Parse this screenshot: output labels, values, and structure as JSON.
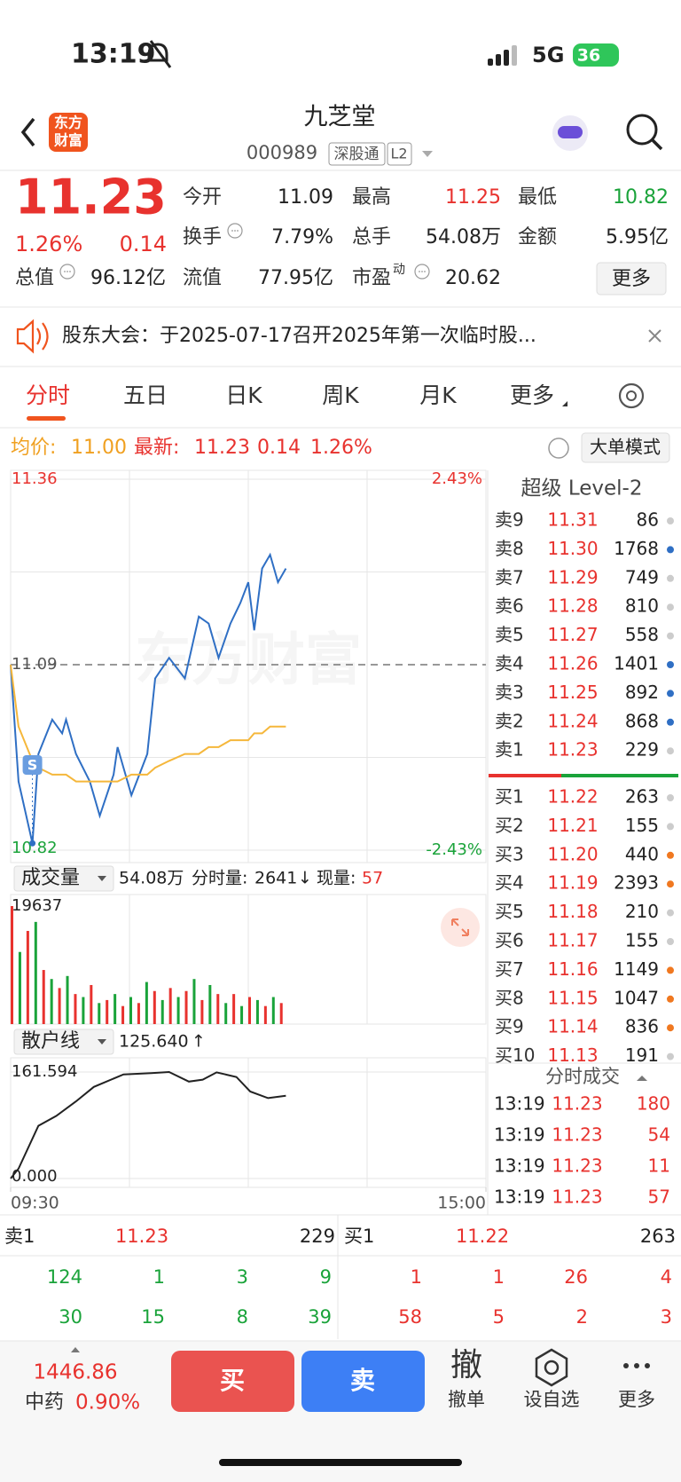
{
  "status_bar": {
    "time": "13:19",
    "network": "5G",
    "battery": "36"
  },
  "header": {
    "logo": [
      "东方",
      "财富"
    ],
    "title": "九芝堂",
    "code": "000989",
    "tags": [
      "深股通",
      "L2"
    ]
  },
  "quote": {
    "price": "11.23",
    "change_pct": "1.26%",
    "change": "0.14",
    "rows": [
      [
        {
          "label": "今开",
          "value": "11.09"
        },
        {
          "label": "最高",
          "value": "11.25"
        },
        {
          "label": "最低",
          "value": "10.82"
        }
      ],
      [
        {
          "label": "换手",
          "value": "7.79%"
        },
        {
          "label": "总手",
          "value": "54.08万"
        },
        {
          "label": "金额",
          "value": "5.95亿"
        }
      ],
      [
        {
          "label": "总值",
          "value": "96.12亿"
        },
        {
          "label": "流值",
          "value": "77.95亿"
        },
        {
          "label": "市盈",
          "sup": "动",
          "value": "20.62"
        }
      ]
    ],
    "more": "更多"
  },
  "notice": "股东大会：于2025-07-17召开2025年第一次临时股...",
  "tabs": [
    "分时",
    "五日",
    "日K",
    "周K",
    "月K",
    "更多"
  ],
  "info_bar": {
    "avg_label": "均价:",
    "avg": "11.00",
    "latest_label": "最新:",
    "latest": "11.23",
    "change": "0.14",
    "change_pct": "1.26%",
    "mode": "大单模式"
  },
  "chart_data": [
    {
      "type": "line",
      "ylim": [
        10.82,
        11.36
      ],
      "yticks": [
        11.36,
        11.09,
        10.82
      ],
      "y2lim": [
        -2.43,
        2.43
      ],
      "y2ticks": [
        {
          "value": 2.43,
          "label": "2.43%"
        },
        {
          "value": -2.43,
          "label": "-2.43%"
        }
      ],
      "xlim": [
        0,
        240
      ],
      "xticks": [
        {
          "value": 0,
          "label": "09:30"
        },
        {
          "value": 240,
          "label": "15:00"
        }
      ],
      "watermark": "东方财富",
      "marker": "S",
      "x": [
        0,
        4,
        11,
        14,
        21,
        26,
        28,
        33,
        40,
        45,
        52,
        54,
        61,
        69,
        73,
        80,
        88,
        95,
        100,
        105,
        111,
        116,
        120,
        123,
        127,
        131,
        135,
        139
      ],
      "series": [
        {
          "color": "#2f6fc4",
          "values": [
            11.09,
            10.92,
            10.83,
            10.96,
            11.01,
            10.99,
            11.01,
            10.96,
            10.92,
            10.87,
            10.93,
            10.97,
            10.9,
            10.96,
            11.07,
            11.1,
            11.07,
            11.16,
            11.15,
            11.1,
            11.15,
            11.18,
            11.21,
            11.14,
            11.23,
            11.25,
            11.21,
            11.23
          ]
        },
        {
          "color": "#f5b73b",
          "values": [
            11.09,
            11.0,
            10.95,
            10.94,
            10.93,
            10.93,
            10.93,
            10.92,
            10.92,
            10.92,
            10.92,
            10.92,
            10.93,
            10.93,
            10.94,
            10.95,
            10.96,
            10.96,
            10.97,
            10.97,
            10.98,
            10.98,
            10.98,
            10.99,
            10.99,
            11.0,
            11.0,
            11.0
          ]
        }
      ]
    },
    {
      "type": "bar",
      "title": "成交量",
      "total": "54.08万",
      "minute_label": "分时量:",
      "minute_value": "2641",
      "arrow": "↓",
      "now_label": "现量:",
      "now_value": "57",
      "ylim": [
        0,
        19637
      ],
      "yticks": [
        19637
      ],
      "xlim": [
        0,
        240
      ],
      "x": [
        0,
        4,
        8,
        12,
        16,
        20,
        24,
        28,
        32,
        36,
        40,
        44,
        48,
        52,
        56,
        60,
        64,
        68,
        72,
        76,
        80,
        84,
        88,
        92,
        96,
        100,
        104,
        108,
        112,
        116,
        120,
        124,
        128,
        132,
        136
      ],
      "values": [
        19637,
        12000,
        15500,
        17000,
        9000,
        7500,
        6000,
        8000,
        5000,
        4500,
        6500,
        3500,
        4000,
        5000,
        3000,
        4500,
        3500,
        7000,
        5500,
        4000,
        6000,
        4500,
        5500,
        7500,
        4000,
        6500,
        5000,
        3500,
        5000,
        3000,
        4500,
        4000,
        3000,
        4500,
        3500
      ],
      "colors": [
        "#e8322e",
        "#1aa33a",
        "#e8322e",
        "#1aa33a",
        "#e8322e",
        "#1aa33a",
        "#e8322e",
        "#1aa33a",
        "#e8322e",
        "#1aa33a",
        "#e8322e",
        "#1aa33a",
        "#e8322e",
        "#1aa33a",
        "#e8322e",
        "#1aa33a",
        "#e8322e",
        "#1aa33a",
        "#e8322e",
        "#1aa33a",
        "#e8322e",
        "#1aa33a",
        "#e8322e",
        "#1aa33a",
        "#e8322e",
        "#1aa33a",
        "#e8322e",
        "#1aa33a",
        "#e8322e",
        "#1aa33a",
        "#e8322e",
        "#1aa33a",
        "#e8322e",
        "#1aa33a",
        "#e8322e"
      ]
    },
    {
      "type": "line",
      "title": "散户线",
      "current": "125.640",
      "arrow": "↑",
      "ylim": [
        0,
        161.594
      ],
      "yticks": [
        161.594,
        {
          "value": 0,
          "label": "0.000"
        }
      ],
      "xlim": [
        0,
        240
      ],
      "x": [
        0,
        4,
        14,
        23,
        33,
        42,
        57,
        71,
        80,
        90,
        97,
        104,
        114,
        121,
        130,
        139
      ],
      "series": [
        {
          "color": "#222222",
          "values": [
            0,
            15,
            80,
            95,
            117,
            139,
            158,
            160,
            161.594,
            147,
            150,
            161,
            154,
            132,
            122,
            125.64
          ]
        }
      ]
    }
  ],
  "order_book": {
    "title": "超级 Level-2",
    "asks": [
      {
        "label": "卖9",
        "price": "11.31",
        "qty": "86",
        "dot": "#cccccc"
      },
      {
        "label": "卖8",
        "price": "11.30",
        "qty": "1768",
        "dot": "#2f6fc4"
      },
      {
        "label": "卖7",
        "price": "11.29",
        "qty": "749",
        "dot": "#cccccc"
      },
      {
        "label": "卖6",
        "price": "11.28",
        "qty": "810",
        "dot": "#cccccc"
      },
      {
        "label": "卖5",
        "price": "11.27",
        "qty": "558",
        "dot": "#cccccc"
      },
      {
        "label": "卖4",
        "price": "11.26",
        "qty": "1401",
        "dot": "#2f6fc4"
      },
      {
        "label": "卖3",
        "price": "11.25",
        "qty": "892",
        "dot": "#2f6fc4"
      },
      {
        "label": "卖2",
        "price": "11.24",
        "qty": "868",
        "dot": "#2f6fc4"
      },
      {
        "label": "卖1",
        "price": "11.23",
        "qty": "229",
        "dot": "#cccccc"
      }
    ],
    "bids": [
      {
        "label": "买1",
        "price": "11.22",
        "qty": "263",
        "dot": "#cccccc"
      },
      {
        "label": "买2",
        "price": "11.21",
        "qty": "155",
        "dot": "#cccccc"
      },
      {
        "label": "买3",
        "price": "11.20",
        "qty": "440",
        "dot": "#f07820"
      },
      {
        "label": "买4",
        "price": "11.19",
        "qty": "2393",
        "dot": "#f07820"
      },
      {
        "label": "买5",
        "price": "11.18",
        "qty": "210",
        "dot": "#cccccc"
      },
      {
        "label": "买6",
        "price": "11.17",
        "qty": "155",
        "dot": "#cccccc"
      },
      {
        "label": "买7",
        "price": "11.16",
        "qty": "1149",
        "dot": "#f07820"
      },
      {
        "label": "买8",
        "price": "11.15",
        "qty": "1047",
        "dot": "#f07820"
      },
      {
        "label": "买9",
        "price": "11.14",
        "qty": "836",
        "dot": "#f07820"
      },
      {
        "label": "买10",
        "price": "11.13",
        "qty": "191",
        "dot": "#cccccc"
      }
    ]
  },
  "trades": {
    "title": "分时成交",
    "rows": [
      [
        "13:19",
        "11.23",
        "180"
      ],
      [
        "13:19",
        "11.23",
        "54"
      ],
      [
        "13:19",
        "11.23",
        "11"
      ],
      [
        "13:19",
        "11.23",
        "57"
      ]
    ]
  },
  "level1": {
    "ask_label": "卖1",
    "ask_price": "11.23",
    "ask_qty": "229",
    "bid_label": "买1",
    "bid_price": "11.22",
    "bid_qty": "263",
    "ask_queue": [
      [
        "124",
        "1",
        "3",
        "9"
      ],
      [
        "30",
        "15",
        "8",
        "39"
      ]
    ],
    "bid_queue": [
      [
        "1",
        "1",
        "26",
        "4"
      ],
      [
        "58",
        "5",
        "2",
        "3"
      ]
    ]
  },
  "footer": {
    "index_value": "1446.86",
    "index_name": "中药",
    "index_change": "0.90%",
    "buy": "买",
    "sell": "卖",
    "actions": [
      {
        "icon": "撤",
        "label": "撤单"
      },
      {
        "label": "设自选"
      },
      {
        "label": "更多"
      }
    ]
  }
}
